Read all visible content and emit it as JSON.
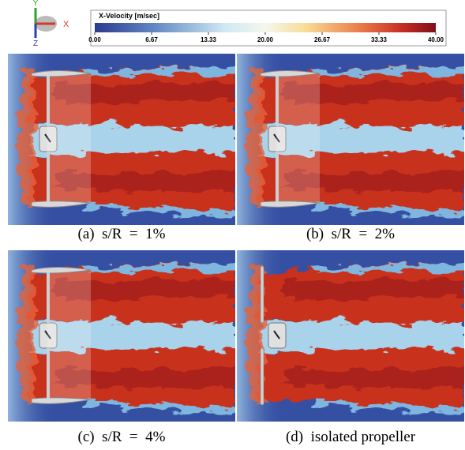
{
  "triad": {
    "y_label": "Y",
    "x_label": "X",
    "z_label": "Z"
  },
  "colorbar": {
    "title": "X-Velocity [m/sec]",
    "lim": [
      0,
      40
    ],
    "ticks": [
      {
        "value": 0,
        "label": "0.00"
      },
      {
        "value": 6.67,
        "label": "6.67"
      },
      {
        "value": 13.33,
        "label": "13.33"
      },
      {
        "value": 20,
        "label": "20.00"
      },
      {
        "value": 26.67,
        "label": "26.67"
      },
      {
        "value": 33.33,
        "label": "33.33"
      },
      {
        "value": 40,
        "label": "40.00"
      }
    ]
  },
  "panels": [
    {
      "caption": "(a)  s/R  =  1%"
    },
    {
      "caption": "(b)  s/R  =  2%"
    },
    {
      "caption": "(c)  s/R  =  4%"
    },
    {
      "caption": "(d)  isolated propeller"
    }
  ]
}
